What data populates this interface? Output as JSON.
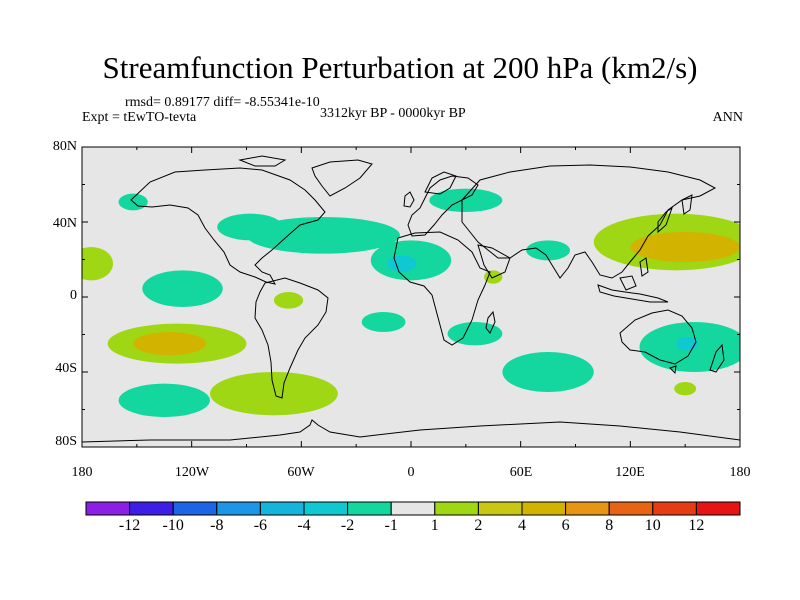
{
  "title": "Streamfunction Perturbation at 200 hPa (km2/s)",
  "stats": "rmsd= 0.89177 diff= -8.55341e-10",
  "experiment": "Expt = tEwTO-tevta",
  "period": "3312kyr BP - 0000kyr BP",
  "season": "ANN",
  "colors": {
    "background": "#e6e6e6",
    "coast": "#000000",
    "neg1": "#14d7a0",
    "neg2": "#0fc8d2",
    "pos1": "#a0d714",
    "pos2": "#d2b400",
    "palette": [
      "#8c1ee6",
      "#3c1ee6",
      "#1e64e6",
      "#1e96e6",
      "#14b4dc",
      "#0fc8d2",
      "#14d7a0",
      "#e6e6e6",
      "#a0d714",
      "#c8c814",
      "#d2b400",
      "#e69614",
      "#e66414",
      "#e63c14",
      "#e61414"
    ]
  },
  "axes": {
    "y_labels": [
      "80N",
      "40N",
      "0",
      "40S",
      "80S"
    ],
    "x_labels": [
      "180",
      "120W",
      "60W",
      "0",
      "60E",
      "120E",
      "180"
    ]
  },
  "colorbar": {
    "labels": [
      "-12",
      "-10",
      "-8",
      "-6",
      "-4",
      "-2",
      "-1",
      "1",
      "2",
      "4",
      "6",
      "8",
      "10",
      "12"
    ]
  },
  "anomalies": [
    {
      "name": "n-pacific-east",
      "lon": -175,
      "lat": 20,
      "rx": 12,
      "ry": 10,
      "sign": "pos1"
    },
    {
      "name": "n-pacific-small",
      "lon": -152,
      "lat": 57,
      "rx": 8,
      "ry": 5,
      "sign": "neg1"
    },
    {
      "name": "e-pacific",
      "lon": -125,
      "lat": 5,
      "rx": 22,
      "ry": 11,
      "sign": "neg1"
    },
    {
      "name": "s-pacific",
      "lon": -128,
      "lat": -28,
      "rx": 38,
      "ry": 12,
      "sign": "pos1"
    },
    {
      "name": "s-pacific-core",
      "lon": -132,
      "lat": -28,
      "rx": 20,
      "ry": 7,
      "sign": "pos2"
    },
    {
      "name": "s-pacific-south",
      "lon": -135,
      "lat": -62,
      "rx": 25,
      "ry": 10,
      "sign": "neg1"
    },
    {
      "name": "s-america-south",
      "lon": -75,
      "lat": -58,
      "rx": 35,
      "ry": 13,
      "sign": "pos1"
    },
    {
      "name": "s-america-tropics",
      "lon": -67,
      "lat": -2,
      "rx": 8,
      "ry": 5,
      "sign": "pos1"
    },
    {
      "name": "n-america-atlantic",
      "lon": -48,
      "lat": 37,
      "rx": 42,
      "ry": 11,
      "sign": "neg1"
    },
    {
      "name": "n-america-west",
      "lon": -88,
      "lat": 42,
      "rx": 18,
      "ry": 8,
      "sign": "neg1"
    },
    {
      "name": "europe",
      "lon": 30,
      "lat": 58,
      "rx": 20,
      "ry": 7,
      "sign": "neg1"
    },
    {
      "name": "sahara",
      "lon": 0,
      "lat": 22,
      "rx": 22,
      "ry": 12,
      "sign": "neg1"
    },
    {
      "name": "sahara-core",
      "lon": -5,
      "lat": 20,
      "rx": 8,
      "ry": 5,
      "sign": "neg2"
    },
    {
      "name": "tropical-atlantic",
      "lon": -15,
      "lat": -15,
      "rx": 12,
      "ry": 6,
      "sign": "neg1"
    },
    {
      "name": "arabia",
      "lon": 45,
      "lat": 12,
      "rx": 5,
      "ry": 4,
      "sign": "pos1"
    },
    {
      "name": "india",
      "lon": 75,
      "lat": 28,
      "rx": 12,
      "ry": 6,
      "sign": "neg1"
    },
    {
      "name": "s-africa",
      "lon": 35,
      "lat": -22,
      "rx": 15,
      "ry": 7,
      "sign": "neg1"
    },
    {
      "name": "s-indian-ocean",
      "lon": 75,
      "lat": -45,
      "rx": 25,
      "ry": 12,
      "sign": "neg1"
    },
    {
      "name": "nw-pacific",
      "lon": 145,
      "lat": 33,
      "rx": 45,
      "ry": 17,
      "sign": "pos1"
    },
    {
      "name": "nw-pacific-core",
      "lon": 150,
      "lat": 30,
      "rx": 30,
      "ry": 9,
      "sign": "pos2"
    },
    {
      "name": "australia",
      "lon": 155,
      "lat": -30,
      "rx": 30,
      "ry": 15,
      "sign": "neg1"
    },
    {
      "name": "australia-core",
      "lon": 151,
      "lat": -28,
      "rx": 6,
      "ry": 4,
      "sign": "neg2"
    },
    {
      "name": "s-pacific-west",
      "lon": 150,
      "lat": -55,
      "rx": 6,
      "ry": 4,
      "sign": "pos1"
    }
  ]
}
